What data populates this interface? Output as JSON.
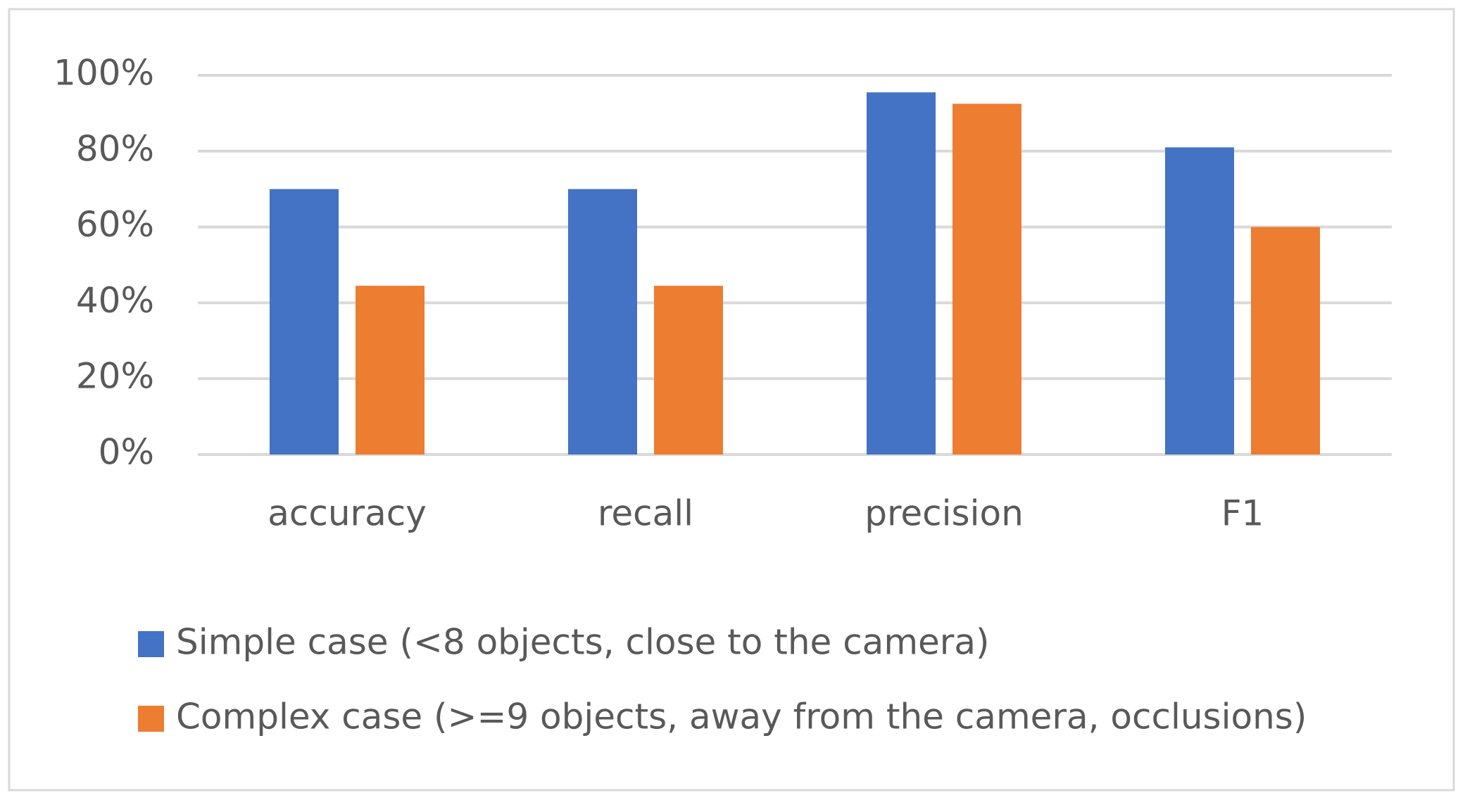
{
  "chart_data": {
    "type": "bar",
    "categories": [
      "accuracy",
      "recall",
      "precision",
      "F1"
    ],
    "series": [
      {
        "name": "Simple case (<8 objects, close to the camera)",
        "color": "#4472c4",
        "values": [
          70,
          70,
          95.5,
          81
        ]
      },
      {
        "name": "Complex case (>=9 objects, away from the camera, occlusions)",
        "color": "#ed7d31",
        "values": [
          44.5,
          44.5,
          92.5,
          60
        ]
      }
    ],
    "ylim": [
      0,
      100
    ],
    "yticks": [
      {
        "value": 0,
        "label": "0%"
      },
      {
        "value": 20,
        "label": "20%"
      },
      {
        "value": 40,
        "label": "40%"
      },
      {
        "value": 60,
        "label": "60%"
      },
      {
        "value": 80,
        "label": "80%"
      },
      {
        "value": 100,
        "label": "100%"
      }
    ],
    "grid": true,
    "legend": "bottom"
  }
}
